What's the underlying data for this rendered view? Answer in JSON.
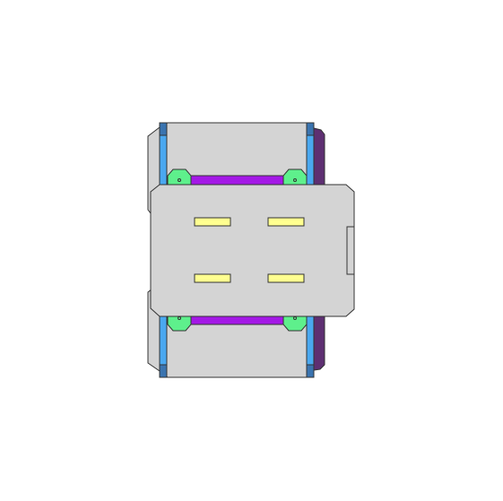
{
  "diagram": {
    "colors": {
      "background": "#ffffff",
      "chassis_fill": "#d4d4d4",
      "stroke": "#333333",
      "rail_blue": "#4aa8f0",
      "rail_end_blue": "#3a74b0",
      "side_panel_purple": "#5e2f72",
      "crossbar_violet": "#a418e6",
      "clamp_green": "#5ef08c",
      "slot_yellow": "#ffff90"
    },
    "parts": {
      "chassis": "chassis",
      "top_plate": "top-plate",
      "left_rail": "left-rail",
      "right_rail": "right-rail",
      "side_panel": "side-panel",
      "crossbars": "crossbars",
      "clamps": "clamps",
      "slots": "slots",
      "side_tab": "side-tab"
    }
  }
}
